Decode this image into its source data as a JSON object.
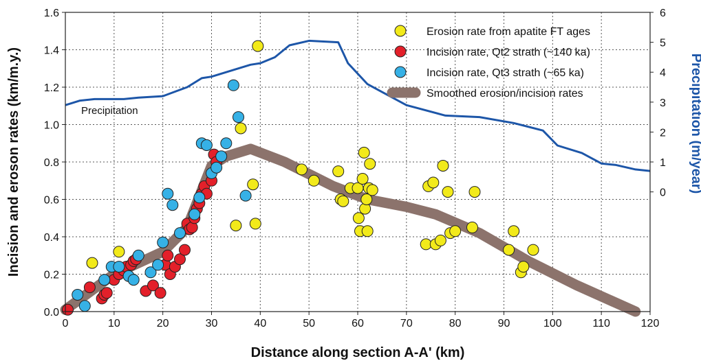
{
  "chart_data": {
    "type": "scatter",
    "xlabel": "Distance along section A-A' (km)",
    "ylabel": "Incision and eroson rates (km/m.y.)",
    "y2label": "Precipitation (m/year)",
    "xlim": [
      0,
      120
    ],
    "ylim": [
      0,
      1.6
    ],
    "y2lim": [
      -4,
      6
    ],
    "xticks": [
      "0",
      "10",
      "20",
      "30",
      "40",
      "50",
      "60",
      "70",
      "80",
      "90",
      "100",
      "110",
      "120"
    ],
    "yticks": [
      "0.0",
      "0.2",
      "0.4",
      "0.6",
      "0.8",
      "1.0",
      "1.2",
      "1.4",
      "1.6"
    ],
    "y2ticks": [
      "0",
      "1",
      "2",
      "3",
      "4",
      "5",
      "6"
    ],
    "grid": true,
    "legend_position": "top-right",
    "annotation": "Precipitation",
    "colors": {
      "apatite": "#f2ea1a",
      "qt2": "#e3202a",
      "qt3": "#36b1e6",
      "smooth": "#8c736c",
      "precip": "#1d56a8"
    },
    "series": [
      {
        "name": "Erosion rate from apatite FT ages",
        "points": [
          [
            5.5,
            0.26
          ],
          [
            11,
            0.32
          ],
          [
            35,
            0.46
          ],
          [
            36,
            0.98
          ],
          [
            38.5,
            0.68
          ],
          [
            39,
            0.47
          ],
          [
            39.5,
            1.42
          ],
          [
            48.5,
            0.76
          ],
          [
            51,
            0.7
          ],
          [
            56,
            0.75
          ],
          [
            56.5,
            0.6
          ],
          [
            57,
            0.59
          ],
          [
            58.5,
            0.66
          ],
          [
            60,
            0.66
          ],
          [
            60.2,
            0.5
          ],
          [
            60.5,
            0.43
          ],
          [
            61,
            0.71
          ],
          [
            61.3,
            0.85
          ],
          [
            61.5,
            0.55
          ],
          [
            61.8,
            0.6
          ],
          [
            62,
            0.43
          ],
          [
            62.3,
            0.66
          ],
          [
            62.5,
            0.79
          ],
          [
            63,
            0.65
          ],
          [
            74,
            0.36
          ],
          [
            74.5,
            0.67
          ],
          [
            75.5,
            0.69
          ],
          [
            76,
            0.36
          ],
          [
            77,
            0.38
          ],
          [
            77.5,
            0.78
          ],
          [
            78.5,
            0.64
          ],
          [
            79,
            0.42
          ],
          [
            80,
            0.43
          ],
          [
            83.5,
            0.45
          ],
          [
            84,
            0.64
          ],
          [
            91,
            0.33
          ],
          [
            92,
            0.43
          ],
          [
            93.5,
            0.21
          ],
          [
            94,
            0.24
          ],
          [
            96,
            0.33
          ]
        ]
      },
      {
        "name": "Incision rate, Qt2 strath (~140 ka)",
        "points": [
          [
            0.5,
            0.01
          ],
          [
            5,
            0.13
          ],
          [
            7.5,
            0.07
          ],
          [
            8,
            0.09
          ],
          [
            8.5,
            0.1
          ],
          [
            10,
            0.17
          ],
          [
            11,
            0.2
          ],
          [
            12,
            0.22
          ],
          [
            12.5,
            0.24
          ],
          [
            13.5,
            0.25
          ],
          [
            14,
            0.27
          ],
          [
            14.5,
            0.28
          ],
          [
            16.5,
            0.11
          ],
          [
            18,
            0.14
          ],
          [
            19.5,
            0.1
          ],
          [
            20.5,
            0.25
          ],
          [
            21,
            0.3
          ],
          [
            21.5,
            0.2
          ],
          [
            22.5,
            0.24
          ],
          [
            23.5,
            0.28
          ],
          [
            24.5,
            0.33
          ],
          [
            25,
            0.47
          ],
          [
            25.5,
            0.44
          ],
          [
            26,
            0.45
          ],
          [
            26.5,
            0.5
          ],
          [
            27,
            0.55
          ],
          [
            27.5,
            0.58
          ],
          [
            28,
            0.63
          ],
          [
            28.5,
            0.67
          ],
          [
            29,
            0.63
          ],
          [
            30,
            0.7
          ],
          [
            30.5,
            0.84
          ],
          [
            31,
            0.8
          ]
        ]
      },
      {
        "name": "Incision rate, Qt3 strath (~65 ka)",
        "points": [
          [
            2.5,
            0.09
          ],
          [
            4,
            0.03
          ],
          [
            8,
            0.17
          ],
          [
            9.5,
            0.24
          ],
          [
            11,
            0.24
          ],
          [
            13,
            0.19
          ],
          [
            14,
            0.17
          ],
          [
            15,
            0.3
          ],
          [
            17.5,
            0.21
          ],
          [
            19,
            0.25
          ],
          [
            20,
            0.37
          ],
          [
            21,
            0.63
          ],
          [
            22,
            0.57
          ],
          [
            23.5,
            0.42
          ],
          [
            26.5,
            0.52
          ],
          [
            27.5,
            0.61
          ],
          [
            28,
            0.9
          ],
          [
            29,
            0.89
          ],
          [
            30,
            0.74
          ],
          [
            31,
            0.77
          ],
          [
            32,
            0.83
          ],
          [
            33,
            0.9
          ],
          [
            34.5,
            1.21
          ],
          [
            35.5,
            1.04
          ],
          [
            37,
            0.62
          ]
        ]
      }
    ],
    "smoothed": {
      "name": "Smoothed erosion/incision rates",
      "points": [
        [
          0,
          0.01
        ],
        [
          10,
          0.2
        ],
        [
          20,
          0.32
        ],
        [
          25,
          0.45
        ],
        [
          30,
          0.78
        ],
        [
          33,
          0.83
        ],
        [
          38,
          0.87
        ],
        [
          45,
          0.8
        ],
        [
          55,
          0.67
        ],
        [
          62,
          0.6
        ],
        [
          70,
          0.56
        ],
        [
          76,
          0.52
        ],
        [
          85,
          0.42
        ],
        [
          95,
          0.27
        ],
        [
          105,
          0.14
        ],
        [
          117,
          0.0
        ]
      ]
    },
    "precipitation": {
      "name": "Precipitation",
      "points": [
        [
          0,
          2.9
        ],
        [
          3,
          3.05
        ],
        [
          6,
          3.1
        ],
        [
          12,
          3.1
        ],
        [
          15,
          3.15
        ],
        [
          20,
          3.2
        ],
        [
          25,
          3.5
        ],
        [
          28,
          3.8
        ],
        [
          30,
          3.85
        ],
        [
          35,
          4.1
        ],
        [
          38,
          4.25
        ],
        [
          40,
          4.3
        ],
        [
          43,
          4.5
        ],
        [
          46,
          4.9
        ],
        [
          50,
          5.05
        ],
        [
          56,
          5.0
        ],
        [
          58,
          4.3
        ],
        [
          62,
          3.6
        ],
        [
          70,
          2.9
        ],
        [
          78,
          2.55
        ],
        [
          85,
          2.5
        ],
        [
          92,
          2.3
        ],
        [
          98,
          2.05
        ],
        [
          101,
          1.55
        ],
        [
          106,
          1.3
        ],
        [
          110,
          0.95
        ],
        [
          113,
          0.9
        ],
        [
          117,
          0.75
        ],
        [
          120,
          0.7
        ]
      ]
    }
  }
}
